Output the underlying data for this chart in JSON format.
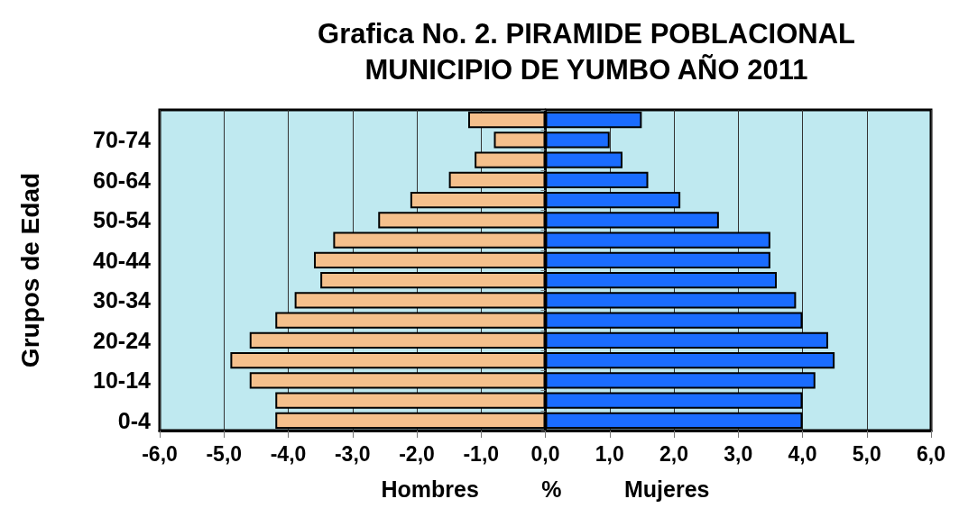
{
  "chart_data": {
    "type": "bar",
    "orientation": "horizontal",
    "stacked": true,
    "title": "Grafica No. 2. PIRAMIDE POBLACIONAL\nMUNICIPIO DE YUMBO AÑO 2011",
    "xlabel": "Hombres          %          Mujeres",
    "ylabel": "Grupos de Edad",
    "categories": [
      null,
      "70-74",
      null,
      "60-64",
      null,
      "50-54",
      null,
      "40-44",
      null,
      "30-34",
      null,
      "20-24",
      null,
      "10-14",
      null,
      "0-4"
    ],
    "series": [
      {
        "color": "#f5c08c",
        "values": [
          -1.2,
          -0.8,
          -1.1,
          -1.5,
          -2.1,
          -2.6,
          -3.3,
          -3.6,
          -3.5,
          -3.9,
          -4.2,
          -4.6,
          -4.9,
          -4.6,
          -4.2,
          -4.2
        ]
      },
      {
        "color": "#1a6cff",
        "values": [
          1.5,
          1.0,
          1.2,
          1.6,
          2.1,
          2.7,
          3.5,
          3.5,
          3.6,
          3.9,
          4.0,
          4.4,
          4.5,
          4.2,
          4.0,
          4.0
        ]
      }
    ],
    "xlim": [
      -6,
      6
    ],
    "xticks": [
      {
        "value": -6,
        "label": "-6,0"
      },
      {
        "value": -5,
        "label": "-5,0"
      },
      {
        "value": -4,
        "label": "-4,0"
      },
      {
        "value": -3,
        "label": "-3,0"
      },
      {
        "value": -2,
        "label": "-2,0"
      },
      {
        "value": -1,
        "label": "-1,0"
      },
      {
        "value": 0,
        "label": "0,0"
      },
      {
        "value": 1,
        "label": "1,0"
      },
      {
        "value": 2,
        "label": "2,0"
      },
      {
        "value": 3,
        "label": "3,0"
      },
      {
        "value": 4,
        "label": "4,0"
      },
      {
        "value": 5,
        "label": "5,0"
      },
      {
        "value": 6,
        "label": "6,0"
      }
    ],
    "grid": "x"
  }
}
